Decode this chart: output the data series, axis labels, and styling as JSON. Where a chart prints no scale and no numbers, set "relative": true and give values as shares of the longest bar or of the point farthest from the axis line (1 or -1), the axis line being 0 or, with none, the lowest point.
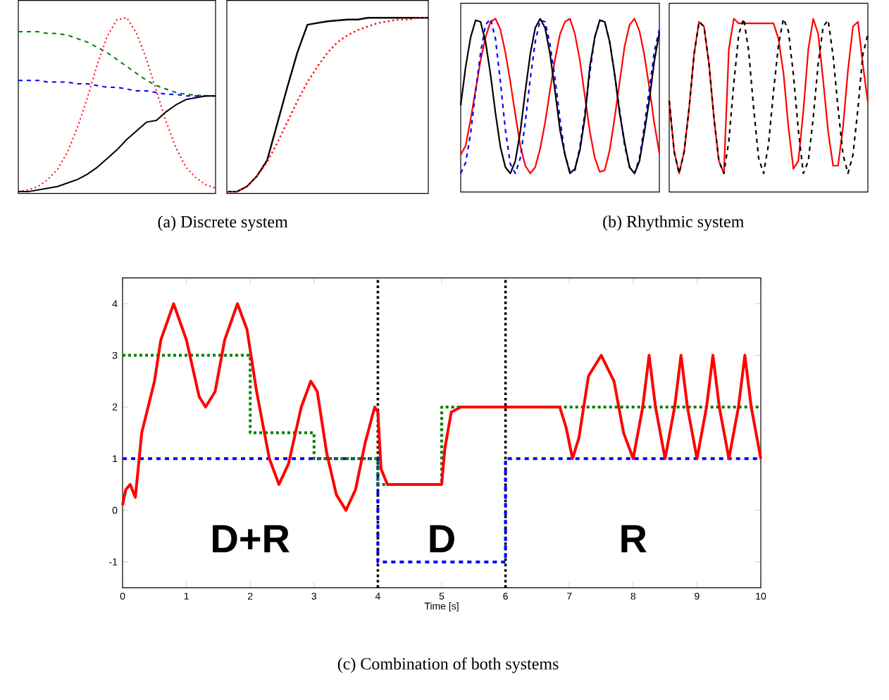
{
  "chart_data": [
    {
      "type": "line",
      "relative": true,
      "categories": [
        null,
        null,
        null,
        null,
        null,
        null,
        null,
        null,
        null,
        null,
        null,
        null,
        null,
        null,
        null,
        null,
        null,
        null,
        null,
        null,
        null
      ],
      "series": [
        {
          "color": "#008000",
          "line_style": "dashed",
          "values": [
            0.92,
            0.92,
            0.92,
            0.91,
            0.91,
            0.9,
            0.88,
            0.86,
            0.83,
            0.8,
            0.76,
            0.72,
            0.68,
            0.64,
            0.61,
            0.59,
            0.57,
            0.56,
            0.555,
            0.55,
            0.55
          ]
        },
        {
          "color": "#0000ff",
          "line_style": "dashed",
          "values": [
            0.64,
            0.64,
            0.64,
            0.63,
            0.63,
            0.63,
            0.62,
            0.62,
            0.61,
            0.6,
            0.6,
            0.59,
            0.58,
            0.58,
            0.57,
            0.56,
            0.56,
            0.55,
            0.55,
            0.55,
            0.55
          ]
        },
        {
          "color": "#ff0000",
          "line_style": "dotted",
          "values": [
            0.0,
            0.01,
            0.03,
            0.07,
            0.13,
            0.23,
            0.37,
            0.54,
            0.73,
            0.89,
            0.99,
            1.0,
            0.91,
            0.76,
            0.58,
            0.4,
            0.25,
            0.14,
            0.08,
            0.04,
            0.02
          ]
        },
        {
          "color": "#000000",
          "line_style": "solid",
          "values": [
            0,
            0,
            0.01,
            0.02,
            0.03,
            0.05,
            0.07,
            0.1,
            0.14,
            0.19,
            0.24,
            0.3,
            0.35,
            0.4,
            0.41,
            0.46,
            0.5,
            0.53,
            0.54,
            0.55,
            0.55
          ]
        }
      ],
      "annotations": [
        "(a) Discrete system"
      ]
    },
    {
      "type": "line",
      "relative": true,
      "categories": [
        null,
        null,
        null,
        null,
        null,
        null,
        null,
        null,
        null,
        null,
        null,
        null,
        null,
        null,
        null,
        null,
        null,
        null,
        null,
        null,
        null
      ],
      "series": [
        {
          "color": "#000000",
          "line_style": "solid",
          "values": [
            0,
            0,
            0.03,
            0.09,
            0.18,
            0.39,
            0.6,
            0.8,
            0.96,
            0.97,
            0.98,
            0.985,
            0.99,
            0.99,
            1,
            1,
            1,
            1,
            1,
            1,
            1
          ]
        },
        {
          "color": "#ff0000",
          "line_style": "dotted",
          "values": [
            0,
            0,
            0.03,
            0.09,
            0.17,
            0.28,
            0.4,
            0.52,
            0.63,
            0.72,
            0.8,
            0.86,
            0.9,
            0.93,
            0.95,
            0.97,
            0.98,
            0.99,
            0.99,
            1,
            1
          ]
        }
      ]
    },
    {
      "type": "line",
      "relative": true,
      "categories": [
        null,
        null,
        null,
        null,
        null,
        null,
        null,
        null,
        null,
        null,
        null,
        null,
        null,
        null,
        null,
        null,
        null,
        null,
        null,
        null,
        null,
        null,
        null,
        null,
        null,
        null,
        null,
        null,
        null,
        null,
        null,
        null,
        null,
        null,
        null,
        null,
        null,
        null,
        null,
        null,
        null
      ],
      "series": [
        {
          "color": "#ff0000",
          "line_style": "solid",
          "values": [
            0.12,
            0.18,
            0.35,
            0.54,
            0.73,
            0.88,
            0.98,
            1.0,
            0.93,
            0.78,
            0.59,
            0.38,
            0.18,
            0.05,
            0,
            0.04,
            0.16,
            0.33,
            0.54,
            0.74,
            0.9,
            0.98,
            1.0,
            0.9,
            0.73,
            0.5,
            0.27,
            0.1,
            0.01,
            0.02,
            0.15,
            0.36,
            0.59,
            0.82,
            0.96,
            1.0,
            0.92,
            0.76,
            0.55,
            0.32,
            0.13
          ]
        },
        {
          "color": "#0000ff",
          "line_style": "dashed",
          "values": [
            0,
            0.07,
            0.26,
            0.53,
            0.78,
            0.96,
            1.0,
            0.87,
            0.59,
            0.28,
            0.06,
            0.0,
            0.1,
            0.33,
            0.61,
            0.85,
            0.99,
            0.98,
            0.83,
            0.61,
            0.35,
            0.12,
            0.01,
            0.02,
            0.17,
            0.39,
            0.65,
            0.88,
            0.99,
            0.98,
            0.85,
            0.64,
            0.41,
            0.18,
            0.04,
            0,
            0.1,
            0.31,
            0.55,
            0.79,
            0.93
          ]
        },
        {
          "color": "#000000",
          "line_style": "solid",
          "values": [
            0.44,
            0.69,
            0.88,
            0.99,
            0.98,
            0.85,
            0.64,
            0.39,
            0.17,
            0.04,
            0.0,
            0.08,
            0.27,
            0.53,
            0.77,
            0.94,
            1.0,
            0.94,
            0.77,
            0.53,
            0.28,
            0.12,
            0.0,
            0.03,
            0.15,
            0.36,
            0.69,
            0.88,
            0.99,
            0.98,
            0.85,
            0.64,
            0.39,
            0.2,
            0.04,
            0,
            0.08,
            0.27,
            0.48,
            0.73,
            0.91
          ]
        }
      ],
      "annotations": [
        "(b) Rhythmic system"
      ]
    },
    {
      "type": "line",
      "relative": true,
      "categories": [
        null,
        null,
        null,
        null,
        null,
        null,
        null,
        null,
        null,
        null,
        null,
        null,
        null,
        null,
        null,
        null,
        null,
        null,
        null,
        null,
        null,
        null,
        null,
        null,
        null,
        null,
        null,
        null,
        null,
        null,
        null,
        null,
        null,
        null,
        null,
        null,
        null,
        null,
        null,
        null,
        null
      ],
      "series": [
        {
          "color": "#ff0000",
          "line_style": "solid",
          "values": [
            0.47,
            0.14,
            0,
            0.14,
            0.42,
            0.77,
            0.98,
            0.95,
            0.71,
            0.36,
            0.08,
            0.0,
            0.8,
            1.0,
            0.97,
            0.97,
            0.97,
            0.97,
            0.97,
            0.97,
            0.97,
            0.97,
            0.87,
            0.65,
            0.3,
            0.03,
            0.08,
            0.4,
            0.8,
            1.0,
            0.9,
            0.6,
            0.27,
            0.05,
            0.05,
            0.3,
            0.67,
            0.95,
            0.98,
            0.7,
            0.46
          ]
        },
        {
          "color": "#000000",
          "line_style": "dashed",
          "values": [
            0.47,
            0.14,
            0,
            0.14,
            0.42,
            0.77,
            0.98,
            0.95,
            0.71,
            0.36,
            0.08,
            0.0,
            0.21,
            0.58,
            0.9,
            1.0,
            0.79,
            0.42,
            0.1,
            0.0,
            0.19,
            0.53,
            0.83,
            1.0,
            0.92,
            0.64,
            0.28,
            0.0,
            0.08,
            0.36,
            0.71,
            0.95,
            0.99,
            0.76,
            0.42,
            0.12,
            0,
            0.12,
            0.42,
            0.77,
            0.9
          ]
        }
      ]
    },
    {
      "type": "line",
      "xlabel": "Time [s]",
      "xlim": [
        0,
        10
      ],
      "ylim": [
        -1.5,
        4.5
      ],
      "xticks": [
        0,
        1,
        2,
        3,
        4,
        5,
        6,
        7,
        8,
        9,
        10
      ],
      "yticks": [
        -1,
        0,
        1,
        2,
        3,
        4
      ],
      "series": [
        {
          "type": "step",
          "color": "#0000ff",
          "line_style": "dashed",
          "x": [
            0,
            4,
            6,
            10
          ],
          "values": [
            1,
            -1,
            1,
            1
          ]
        },
        {
          "type": "step",
          "color": "#008000",
          "line_style": "dotted",
          "x": [
            0,
            2,
            3,
            4,
            5,
            10
          ],
          "values": [
            3,
            1.5,
            1,
            0.5,
            2,
            2
          ]
        },
        {
          "color": "#ff0000",
          "line_style": "solid",
          "x": [
            0,
            0.05,
            0.12,
            0.2,
            0.3,
            0.4,
            0.5,
            0.6,
            0.8,
            1.0,
            1.2,
            1.3,
            1.45,
            1.6,
            1.8,
            1.95,
            2.1,
            2.3,
            2.45,
            2.6,
            2.8,
            2.95,
            3.05,
            3.2,
            3.35,
            3.5,
            3.65,
            3.8,
            3.95,
            4.0,
            4.05,
            4.15,
            5.0,
            5.05,
            5.15,
            5.3,
            6.85,
            6.95,
            7.05,
            7.15,
            7.3,
            7.5,
            7.7,
            7.85,
            8.0,
            8.15,
            8.25,
            8.35,
            8.5,
            8.65,
            8.75,
            8.85,
            9.0,
            9.15,
            9.25,
            9.35,
            9.5,
            9.65,
            9.75,
            9.85,
            10.0
          ],
          "values": [
            0.1,
            0.4,
            0.5,
            0.25,
            1.5,
            2.0,
            2.5,
            3.3,
            4.0,
            3.3,
            2.2,
            2.0,
            2.3,
            3.3,
            4.0,
            3.5,
            2.3,
            1.0,
            0.5,
            0.9,
            2.0,
            2.5,
            2.3,
            1.1,
            0.3,
            0.0,
            0.4,
            1.3,
            2.0,
            1.9,
            0.8,
            0.5,
            0.5,
            1.2,
            1.9,
            2.0,
            2.0,
            1.6,
            1.0,
            1.4,
            2.6,
            3.0,
            2.5,
            1.5,
            1.0,
            2.0,
            3.0,
            2.0,
            1.0,
            2.0,
            3.0,
            2.0,
            1.0,
            2.0,
            3.0,
            2.0,
            1.0,
            2.0,
            3.0,
            2.0,
            1.0
          ]
        }
      ],
      "ref_lines": [
        {
          "axis": "x",
          "value": 4,
          "color": "#000000",
          "line_style": "dotted"
        },
        {
          "axis": "x",
          "value": 6,
          "color": "#000000",
          "line_style": "dotted"
        }
      ],
      "annotations": [
        "D+R",
        "D",
        "R",
        "(c) Combination of both systems"
      ]
    }
  ]
}
